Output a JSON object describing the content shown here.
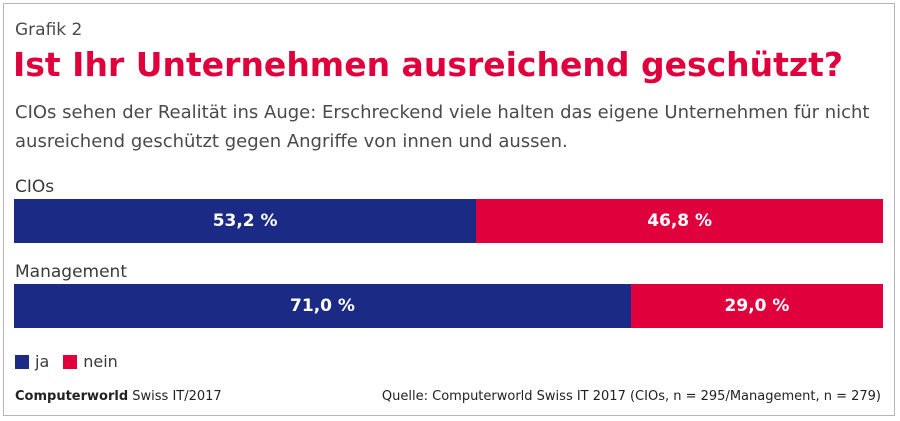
{
  "header": {
    "kicker": "Grafik 2",
    "title": "Ist Ihr Unternehmen ausreichend geschützt?",
    "subtitle": "CIOs sehen der Realität ins Auge: Erschreckend viele halten das eigene Unternehmen für nicht ausreichend geschützt gegen Angriffe von innen und aussen."
  },
  "colors": {
    "ja": "#1b2a84",
    "nein": "#e0003c",
    "title": "#e0003c"
  },
  "chart_data": {
    "type": "bar",
    "orientation": "horizontal",
    "stacked": true,
    "unit": "%",
    "categories": [
      "CIOs",
      "Management"
    ],
    "series": [
      {
        "name": "ja",
        "values": [
          53.2,
          71.0
        ],
        "labels": [
          "53,2 %",
          "71,0 %"
        ]
      },
      {
        "name": "nein",
        "values": [
          46.8,
          29.0
        ],
        "labels": [
          "46,8 %",
          "29,0 %"
        ]
      }
    ],
    "legend": [
      "ja",
      "nein"
    ],
    "legend_position": "bottom-left",
    "grid": false
  },
  "footer": {
    "brand": "Computerworld",
    "edition": " Swiss IT/2017",
    "source": "Quelle: Computerworld Swiss IT 2017 (CIOs, n = 295/Management, n = 279)"
  }
}
